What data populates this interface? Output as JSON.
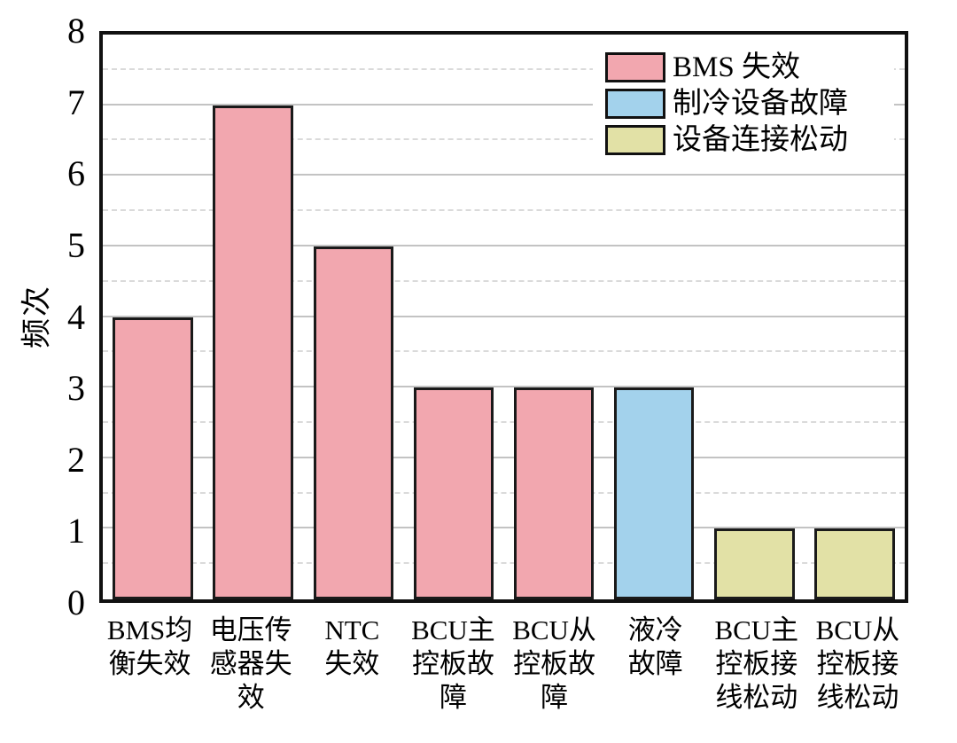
{
  "chart_data": {
    "type": "bar",
    "title": "",
    "xlabel": "",
    "ylabel": "频次",
    "ylim": [
      0,
      8
    ],
    "yticks": [
      0,
      1,
      2,
      3,
      4,
      5,
      6,
      7,
      8
    ],
    "categories": [
      "BMS均\n衡失效",
      "电压传\n感器失\n效",
      "NTC\n失效",
      "BCU主\n控板故\n障",
      "BCU从\n控板故\n障",
      "液冷\n故障",
      "BCU主\n控板接\n线松动",
      "BCU从\n控板接\n线松动"
    ],
    "values": [
      4,
      7,
      5,
      3,
      3,
      3,
      1,
      1
    ],
    "bar_groups": [
      0,
      0,
      0,
      0,
      0,
      1,
      2,
      2
    ],
    "legend": {
      "position": "upper-right",
      "entries": [
        {
          "label": "BMS 失效",
          "color": "#f2a7af"
        },
        {
          "label": "制冷设备故障",
          "color": "#a3d2ec"
        },
        {
          "label": "设备连接松动",
          "color": "#e2e1a6"
        }
      ]
    },
    "grid": {
      "major": "solid",
      "minor": "dashed",
      "minor_step": 0.5
    },
    "colors": {
      "bar_edge": "#1a1a1a",
      "frame": "#111111",
      "grid_major": "#c3c3c3",
      "grid_minor": "#dadada",
      "background": "#ffffff",
      "text": "#000000"
    }
  }
}
